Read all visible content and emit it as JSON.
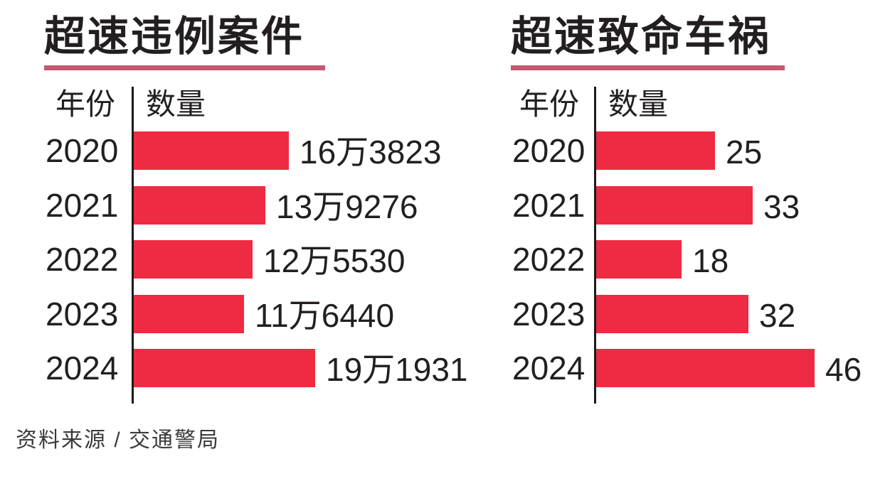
{
  "chart_data": [
    {
      "type": "bar",
      "orientation": "horizontal",
      "title": "超速违例案件",
      "columns": [
        "年份",
        "数量"
      ],
      "categories": [
        "2020",
        "2021",
        "2022",
        "2023",
        "2024"
      ],
      "values": [
        163823,
        139276,
        125530,
        116440,
        191931
      ],
      "value_labels": [
        "16万3823",
        "13万9276",
        "12万5530",
        "11万6440",
        "19万1931"
      ],
      "bar_color": "#ee2b43",
      "axis_color": "#1a1a1a",
      "underline_color": "#c25a72",
      "legend": "none",
      "grid": "off"
    },
    {
      "type": "bar",
      "orientation": "horizontal",
      "title": "超速致命车祸",
      "columns": [
        "年份",
        "数量"
      ],
      "categories": [
        "2020",
        "2021",
        "2022",
        "2023",
        "2024"
      ],
      "values": [
        25,
        33,
        18,
        32,
        46
      ],
      "value_labels": [
        "25",
        "33",
        "18",
        "32",
        "46"
      ],
      "bar_color": "#ee2b43",
      "axis_color": "#1a1a1a",
      "underline_color": "#c25a72",
      "legend": "none",
      "grid": "off"
    }
  ],
  "source": "资料来源 / 交通警局",
  "colors": {
    "bar": "#ee2b43",
    "underline": "#c25a72",
    "text": "#231f20",
    "background": "#ffffff"
  }
}
